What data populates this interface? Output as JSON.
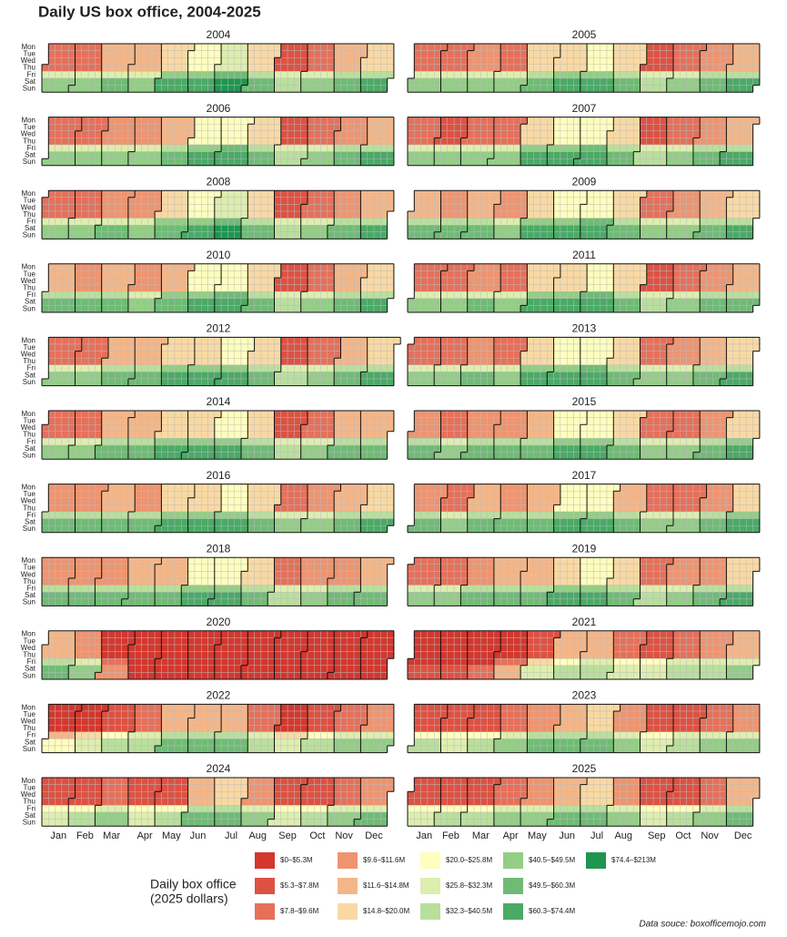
{
  "chart_data": {
    "type": "calendar_heatmap",
    "title": "Daily US box office, 2004-2025",
    "source": "Data souce: boxofficemojo.com",
    "weekdays": [
      "Mon",
      "Tue",
      "Wed",
      "Thu",
      "Fri",
      "Sat",
      "Sun"
    ],
    "months": [
      "Jan",
      "Feb",
      "Mar",
      "Apr",
      "May",
      "Jun",
      "Jul",
      "Aug",
      "Sep",
      "Oct",
      "Nov",
      "Dec"
    ],
    "legend": {
      "title": [
        "Daily box office",
        "(2025 dollars)"
      ],
      "edges": [
        0,
        5.3,
        7.8,
        9.6,
        11.6,
        14.8,
        20.0,
        25.8,
        32.3,
        40.5,
        49.5,
        60.3,
        74.4,
        213
      ],
      "labels": [
        "$0–$5.3M",
        "$5.3–$7.8M",
        "$7.8–$9.6M",
        "$9.6–$11.6M",
        "$11.6–$14.8M",
        "$14.8–$20.0M",
        "$20.0–$25.8M",
        "$25.8–$32.3M",
        "$32.3–$40.5M",
        "$40.5–$49.5M",
        "$49.5–$60.3M",
        "$60.3–$74.4M",
        "$74.4–$213M"
      ],
      "colors": [
        "#d3372e",
        "#de5142",
        "#e6705a",
        "#ee9470",
        "#f4b688",
        "#f9d9a3",
        "#fefebe",
        "#ddeeae",
        "#b9df9c",
        "#93cd86",
        "#6fbb76",
        "#4aaa66",
        "#1e9650"
      ]
    },
    "panels": [
      {
        "year": 2004,
        "mon_thu": [
          8,
          9,
          13,
          12,
          17,
          22,
          26,
          17,
          7,
          9,
          12,
          16
        ],
        "fri": [
          30,
          30,
          32,
          32,
          42,
          45,
          52,
          40,
          28,
          32,
          38,
          36
        ],
        "sat_sun": [
          45,
          46,
          50,
          48,
          62,
          70,
          76,
          60,
          40,
          46,
          56,
          62
        ]
      },
      {
        "year": 2005,
        "mon_thu": [
          8,
          9,
          11,
          9,
          15,
          19,
          24,
          18,
          7,
          9,
          11,
          14
        ],
        "fri": [
          28,
          30,
          30,
          30,
          40,
          42,
          48,
          38,
          26,
          30,
          36,
          36
        ],
        "sat_sun": [
          44,
          45,
          48,
          46,
          58,
          64,
          70,
          56,
          40,
          45,
          54,
          62
        ]
      },
      {
        "year": 2006,
        "mon_thu": [
          8,
          9,
          10,
          10,
          14,
          20,
          24,
          17,
          7,
          8,
          11,
          14
        ],
        "fri": [
          30,
          30,
          30,
          30,
          40,
          45,
          50,
          38,
          26,
          30,
          36,
          36
        ],
        "sat_sun": [
          46,
          46,
          48,
          46,
          60,
          66,
          72,
          56,
          40,
          46,
          56,
          62
        ]
      },
      {
        "year": 2007,
        "mon_thu": [
          8,
          7,
          9,
          9,
          18,
          21,
          24,
          18,
          7,
          8,
          11,
          14
        ],
        "fri": [
          30,
          32,
          30,
          30,
          45,
          45,
          50,
          38,
          26,
          30,
          36,
          36
        ],
        "sat_sun": [
          45,
          48,
          48,
          46,
          64,
          66,
          70,
          56,
          38,
          44,
          56,
          62
        ]
      },
      {
        "year": 2008,
        "mon_thu": [
          9,
          9,
          10,
          10,
          15,
          20,
          26,
          18,
          7,
          9,
          11,
          14
        ],
        "fri": [
          32,
          32,
          32,
          30,
          42,
          45,
          52,
          38,
          26,
          30,
          36,
          36
        ],
        "sat_sun": [
          48,
          48,
          50,
          46,
          60,
          66,
          76,
          56,
          40,
          45,
          56,
          62
        ]
      },
      {
        "year": 2009,
        "mon_thu": [
          12,
          10,
          12,
          11,
          15,
          21,
          24,
          17,
          8,
          10,
          13,
          16
        ],
        "fri": [
          38,
          34,
          36,
          32,
          42,
          45,
          50,
          38,
          28,
          32,
          40,
          40
        ],
        "sat_sun": [
          56,
          50,
          54,
          48,
          62,
          66,
          72,
          58,
          42,
          48,
          58,
          66
        ]
      },
      {
        "year": 2010,
        "mon_thu": [
          13,
          10,
          12,
          11,
          14,
          20,
          24,
          16,
          7,
          9,
          12,
          15
        ],
        "fri": [
          38,
          34,
          36,
          32,
          42,
          45,
          50,
          38,
          26,
          32,
          38,
          38
        ],
        "sat_sun": [
          56,
          52,
          54,
          48,
          60,
          66,
          72,
          56,
          40,
          46,
          56,
          62
        ]
      },
      {
        "year": 2011,
        "mon_thu": [
          8,
          9,
          10,
          9,
          16,
          19,
          24,
          17,
          7,
          9,
          11,
          14
        ],
        "fri": [
          30,
          30,
          32,
          30,
          42,
          44,
          50,
          38,
          26,
          30,
          38,
          36
        ],
        "sat_sun": [
          45,
          46,
          50,
          46,
          62,
          66,
          72,
          56,
          38,
          44,
          56,
          60
        ]
      },
      {
        "year": 2012,
        "mon_thu": [
          9,
          9,
          12,
          12,
          16,
          19,
          22,
          16,
          7,
          9,
          13,
          15
        ],
        "fri": [
          32,
          30,
          36,
          34,
          42,
          44,
          48,
          36,
          26,
          32,
          40,
          38
        ],
        "sat_sun": [
          48,
          46,
          54,
          52,
          62,
          64,
          70,
          54,
          40,
          46,
          58,
          62
        ]
      },
      {
        "year": 2013,
        "mon_thu": [
          9,
          8,
          10,
          9,
          15,
          20,
          23,
          17,
          8,
          10,
          12,
          15
        ],
        "fri": [
          30,
          30,
          32,
          30,
          42,
          45,
          50,
          38,
          28,
          32,
          40,
          38
        ],
        "sat_sun": [
          46,
          46,
          50,
          46,
          62,
          66,
          72,
          56,
          42,
          48,
          58,
          62
        ]
      },
      {
        "year": 2014,
        "mon_thu": [
          9,
          9,
          12,
          12,
          15,
          19,
          20,
          17,
          7,
          9,
          12,
          14
        ],
        "fri": [
          32,
          32,
          36,
          34,
          42,
          44,
          46,
          38,
          26,
          32,
          38,
          36
        ],
        "sat_sun": [
          48,
          48,
          54,
          52,
          62,
          64,
          66,
          56,
          40,
          46,
          56,
          60
        ]
      },
      {
        "year": 2015,
        "mon_thu": [
          10,
          9,
          10,
          11,
          14,
          21,
          22,
          17,
          8,
          9,
          11,
          16
        ],
        "fri": [
          34,
          32,
          34,
          34,
          40,
          46,
          48,
          38,
          28,
          32,
          36,
          42
        ],
        "sat_sun": [
          52,
          48,
          50,
          52,
          60,
          68,
          70,
          56,
          42,
          46,
          54,
          70
        ]
      },
      {
        "year": 2016,
        "mon_thu": [
          11,
          10,
          12,
          11,
          15,
          19,
          22,
          17,
          8,
          10,
          12,
          15
        ],
        "fri": [
          36,
          34,
          36,
          34,
          42,
          44,
          48,
          38,
          28,
          32,
          38,
          40
        ],
        "sat_sun": [
          54,
          52,
          54,
          52,
          62,
          64,
          68,
          56,
          42,
          46,
          58,
          64
        ]
      },
      {
        "year": 2017,
        "mon_thu": [
          10,
          9,
          12,
          11,
          14,
          20,
          22,
          14,
          8,
          9,
          11,
          16
        ],
        "fri": [
          34,
          32,
          36,
          34,
          40,
          45,
          48,
          34,
          28,
          30,
          38,
          42
        ],
        "sat_sun": [
          52,
          48,
          54,
          52,
          60,
          66,
          68,
          52,
          42,
          46,
          56,
          68
        ]
      },
      {
        "year": 2018,
        "mon_thu": [
          10,
          11,
          11,
          12,
          14,
          20,
          22,
          16,
          8,
          10,
          11,
          14
        ],
        "fri": [
          34,
          38,
          34,
          36,
          40,
          45,
          48,
          36,
          28,
          32,
          38,
          38
        ],
        "sat_sun": [
          52,
          56,
          50,
          54,
          60,
          66,
          68,
          54,
          40,
          48,
          56,
          60
        ]
      },
      {
        "year": 2019,
        "mon_thu": [
          9,
          9,
          11,
          13,
          14,
          19,
          22,
          15,
          8,
          10,
          11,
          15
        ],
        "fri": [
          32,
          32,
          34,
          38,
          40,
          44,
          48,
          36,
          28,
          32,
          36,
          40
        ],
        "sat_sun": [
          48,
          48,
          50,
          56,
          58,
          64,
          68,
          54,
          40,
          48,
          54,
          64
        ]
      },
      {
        "year": 2020,
        "mon_thu": [
          12,
          10,
          5,
          2,
          2,
          2,
          2,
          2,
          2,
          2,
          2,
          2
        ],
        "fri": [
          36,
          32,
          8,
          1,
          1,
          1,
          2,
          3,
          3,
          3,
          3,
          3
        ],
        "sat_sun": [
          52,
          48,
          10,
          1,
          1,
          2,
          2,
          3,
          4,
          4,
          4,
          4
        ]
      },
      {
        "year": 2021,
        "mon_thu": [
          2,
          2,
          2,
          3,
          6,
          12,
          13,
          8,
          7,
          9,
          10,
          12
        ],
        "fri": [
          4,
          4,
          5,
          9,
          18,
          25,
          30,
          22,
          20,
          28,
          28,
          30
        ],
        "sat_sun": [
          6,
          6,
          8,
          14,
          28,
          35,
          40,
          30,
          30,
          40,
          40,
          45
        ]
      },
      {
        "year": 2022,
        "mon_thu": [
          5,
          5,
          6,
          8,
          12,
          14,
          14,
          8,
          5,
          7,
          9,
          10
        ],
        "fri": [
          14,
          18,
          22,
          26,
          34,
          38,
          38,
          26,
          16,
          22,
          28,
          30
        ],
        "sat_sun": [
          22,
          28,
          34,
          38,
          50,
          56,
          56,
          40,
          26,
          34,
          42,
          48
        ]
      },
      {
        "year": 2023,
        "mon_thu": [
          7,
          6,
          7,
          9,
          11,
          13,
          15,
          10,
          6,
          7,
          8,
          10
        ],
        "fri": [
          22,
          20,
          24,
          30,
          34,
          36,
          40,
          30,
          20,
          26,
          28,
          30
        ],
        "sat_sun": [
          34,
          32,
          36,
          44,
          50,
          54,
          58,
          44,
          30,
          38,
          42,
          48
        ]
      },
      {
        "year": 2024,
        "mon_thu": [
          6,
          6,
          8,
          6,
          7,
          14,
          16,
          10,
          6,
          7,
          9,
          11
        ],
        "fri": [
          20,
          22,
          28,
          20,
          24,
          38,
          40,
          30,
          20,
          24,
          30,
          32
        ],
        "sat_sun": [
          30,
          34,
          42,
          30,
          36,
          56,
          60,
          44,
          30,
          36,
          46,
          50
        ]
      },
      {
        "year": 2025,
        "mon_thu": [
          6,
          6,
          7,
          8,
          10,
          13,
          15,
          10,
          6,
          7,
          9,
          13
        ],
        "fri": [
          20,
          22,
          24,
          30,
          32,
          36,
          40,
          30,
          20,
          24,
          30,
          36
        ],
        "sat_sun": [
          30,
          34,
          36,
          44,
          48,
          54,
          58,
          44,
          30,
          36,
          44,
          54
        ]
      }
    ]
  }
}
